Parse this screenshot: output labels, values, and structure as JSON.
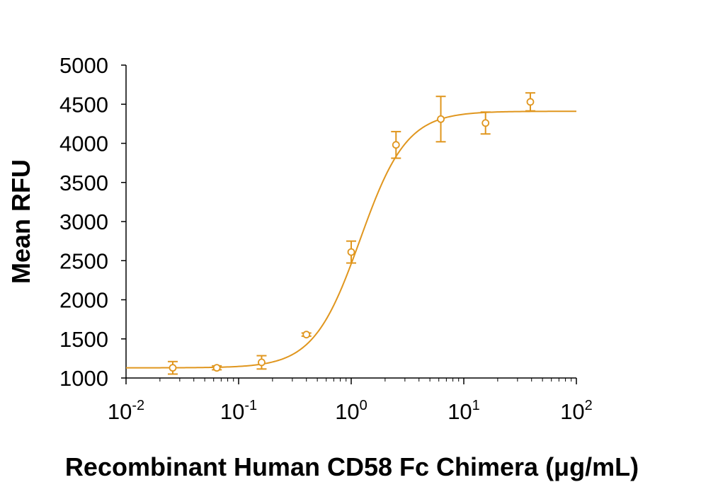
{
  "chart_data": {
    "type": "scatter",
    "title": "",
    "xlabel": "Recombinant Human CD58 Fc Chimera (μg/mL)",
    "ylabel": "Mean RFU",
    "x_scale": "log",
    "xlim": [
      0.01,
      100
    ],
    "ylim": [
      1000,
      5000
    ],
    "x_ticks": [
      {
        "base": "10",
        "exp": "-2",
        "value": 0.01
      },
      {
        "base": "10",
        "exp": "-1",
        "value": 0.1
      },
      {
        "base": "10",
        "exp": "0",
        "value": 1
      },
      {
        "base": "10",
        "exp": "1",
        "value": 10
      },
      {
        "base": "10",
        "exp": "2",
        "value": 100
      }
    ],
    "y_ticks": [
      "1000",
      "1500",
      "2000",
      "2500",
      "3000",
      "3500",
      "4000",
      "4500",
      "5000"
    ],
    "grid": false,
    "legend": "none",
    "color": "#E0961E",
    "series": [
      {
        "points": [
          {
            "x": 0.026,
            "y": 1130,
            "err": 80
          },
          {
            "x": 0.064,
            "y": 1130,
            "err": 25
          },
          {
            "x": 0.16,
            "y": 1200,
            "err": 85
          },
          {
            "x": 0.4,
            "y": 1555,
            "err": 20
          },
          {
            "x": 1.0,
            "y": 2610,
            "err": 140
          },
          {
            "x": 2.5,
            "y": 3980,
            "err": 170
          },
          {
            "x": 6.25,
            "y": 4310,
            "err": 290
          },
          {
            "x": 15.6,
            "y": 4260,
            "err": 140
          },
          {
            "x": 39,
            "y": 4530,
            "err": 115
          }
        ]
      }
    ],
    "fit": {
      "model": "4PL",
      "bottom": 1130,
      "top": 4410,
      "ec50": 1.2,
      "hill": 2.1
    }
  }
}
